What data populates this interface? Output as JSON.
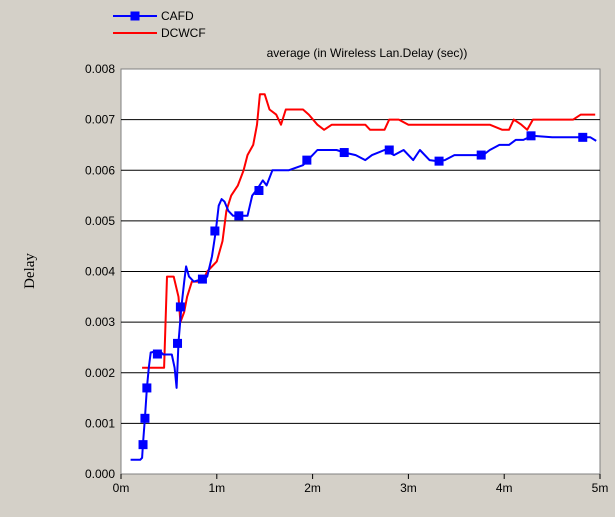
{
  "chart_data": {
    "type": "line",
    "title": "average (in Wireless Lan.Delay (sec))",
    "ylabel": "Delay",
    "xlabel": "",
    "xlim": [
      0,
      5
    ],
    "ylim": [
      0,
      0.008
    ],
    "grid": "horizontal",
    "legend_position": "top-left",
    "x_ticks": [
      {
        "value": 0,
        "label": "0m"
      },
      {
        "value": 1,
        "label": "1m"
      },
      {
        "value": 2,
        "label": "2m"
      },
      {
        "value": 3,
        "label": "3m"
      },
      {
        "value": 4,
        "label": "4m"
      },
      {
        "value": 5,
        "label": "5m"
      }
    ],
    "y_ticks": [
      {
        "value": 0.0,
        "label": "0.000"
      },
      {
        "value": 0.001,
        "label": "0.001"
      },
      {
        "value": 0.002,
        "label": "0.002"
      },
      {
        "value": 0.003,
        "label": "0.003"
      },
      {
        "value": 0.004,
        "label": "0.004"
      },
      {
        "value": 0.005,
        "label": "0.005"
      },
      {
        "value": 0.006,
        "label": "0.006"
      },
      {
        "value": 0.007,
        "label": "0.007"
      },
      {
        "value": 0.008,
        "label": "0.008"
      }
    ],
    "series": [
      {
        "name": "CAFD",
        "color": "#0000ff",
        "marker": "square",
        "points": [
          [
            0.1,
            0.00028
          ],
          [
            0.2,
            0.00028
          ],
          [
            0.22,
            0.00032
          ],
          [
            0.23,
            0.0006
          ],
          [
            0.25,
            0.0011
          ],
          [
            0.27,
            0.0017
          ],
          [
            0.29,
            0.0021
          ],
          [
            0.31,
            0.0024
          ],
          [
            0.36,
            0.00242
          ],
          [
            0.41,
            0.00242
          ],
          [
            0.44,
            0.00236
          ],
          [
            0.53,
            0.00236
          ],
          [
            0.56,
            0.0021
          ],
          [
            0.58,
            0.0017
          ],
          [
            0.6,
            0.0026
          ],
          [
            0.63,
            0.0033
          ],
          [
            0.66,
            0.0038
          ],
          [
            0.68,
            0.0041
          ],
          [
            0.71,
            0.0039
          ],
          [
            0.76,
            0.0038
          ],
          [
            0.85,
            0.00385
          ],
          [
            0.9,
            0.0039
          ],
          [
            0.95,
            0.0043
          ],
          [
            0.99,
            0.0048
          ],
          [
            1.02,
            0.0053
          ],
          [
            1.05,
            0.00543
          ],
          [
            1.08,
            0.00538
          ],
          [
            1.12,
            0.0052
          ],
          [
            1.17,
            0.0051
          ],
          [
            1.32,
            0.0051
          ],
          [
            1.37,
            0.0055
          ],
          [
            1.42,
            0.00562
          ],
          [
            1.48,
            0.0058
          ],
          [
            1.52,
            0.0057
          ],
          [
            1.58,
            0.006
          ],
          [
            1.75,
            0.006
          ],
          [
            1.9,
            0.0061
          ],
          [
            1.95,
            0.0062
          ],
          [
            2.0,
            0.0063
          ],
          [
            2.05,
            0.0064
          ],
          [
            2.25,
            0.0064
          ],
          [
            2.33,
            0.00635
          ],
          [
            2.45,
            0.0063
          ],
          [
            2.55,
            0.0062
          ],
          [
            2.62,
            0.0063
          ],
          [
            2.75,
            0.0064
          ],
          [
            2.85,
            0.0063
          ],
          [
            2.95,
            0.0064
          ],
          [
            3.05,
            0.0062
          ],
          [
            3.12,
            0.0064
          ],
          [
            3.22,
            0.0062
          ],
          [
            3.3,
            0.00618
          ],
          [
            3.38,
            0.0062
          ],
          [
            3.48,
            0.0063
          ],
          [
            3.6,
            0.0063
          ],
          [
            3.72,
            0.0063
          ],
          [
            3.78,
            0.0063
          ],
          [
            3.85,
            0.0064
          ],
          [
            3.95,
            0.0065
          ],
          [
            4.05,
            0.0065
          ],
          [
            4.12,
            0.0066
          ],
          [
            4.2,
            0.0066
          ],
          [
            4.29,
            0.00668
          ],
          [
            4.5,
            0.00665
          ],
          [
            4.82,
            0.00665
          ],
          [
            4.9,
            0.00665
          ],
          [
            4.96,
            0.00658
          ]
        ],
        "marker_points": [
          [
            0.23,
            0.00058
          ],
          [
            0.25,
            0.0011
          ],
          [
            0.27,
            0.0017
          ],
          [
            0.38,
            0.00237
          ],
          [
            0.59,
            0.00258
          ],
          [
            0.62,
            0.0033
          ],
          [
            0.85,
            0.00385
          ],
          [
            0.98,
            0.0048
          ],
          [
            1.23,
            0.0051
          ],
          [
            1.44,
            0.0056
          ],
          [
            1.94,
            0.0062
          ],
          [
            2.33,
            0.00635
          ],
          [
            2.8,
            0.0064
          ],
          [
            3.32,
            0.00618
          ],
          [
            3.76,
            0.0063
          ],
          [
            4.28,
            0.00668
          ],
          [
            4.82,
            0.00665
          ]
        ]
      },
      {
        "name": "DCWCF",
        "color": "#ff0000",
        "marker": "none",
        "points": [
          [
            0.22,
            0.0021
          ],
          [
            0.45,
            0.0021
          ],
          [
            0.48,
            0.0039
          ],
          [
            0.55,
            0.0039
          ],
          [
            0.6,
            0.0035
          ],
          [
            0.62,
            0.003
          ],
          [
            0.66,
            0.0032
          ],
          [
            0.69,
            0.0035
          ],
          [
            0.74,
            0.0038
          ],
          [
            0.85,
            0.0038
          ],
          [
            0.9,
            0.004
          ],
          [
            1.0,
            0.0042
          ],
          [
            1.06,
            0.0046
          ],
          [
            1.1,
            0.0052
          ],
          [
            1.15,
            0.0055
          ],
          [
            1.22,
            0.0057
          ],
          [
            1.28,
            0.006
          ],
          [
            1.32,
            0.0063
          ],
          [
            1.38,
            0.0065
          ],
          [
            1.42,
            0.0069
          ],
          [
            1.45,
            0.0075
          ],
          [
            1.5,
            0.0075
          ],
          [
            1.55,
            0.0072
          ],
          [
            1.62,
            0.0071
          ],
          [
            1.67,
            0.0069
          ],
          [
            1.72,
            0.0072
          ],
          [
            1.9,
            0.0072
          ],
          [
            1.96,
            0.0071
          ],
          [
            2.05,
            0.0069
          ],
          [
            2.12,
            0.0068
          ],
          [
            2.2,
            0.0069
          ],
          [
            2.55,
            0.0069
          ],
          [
            2.6,
            0.0068
          ],
          [
            2.75,
            0.0068
          ],
          [
            2.8,
            0.007
          ],
          [
            2.9,
            0.007
          ],
          [
            3.0,
            0.0069
          ],
          [
            3.35,
            0.0069
          ],
          [
            3.75,
            0.0069
          ],
          [
            3.85,
            0.0069
          ],
          [
            3.98,
            0.0068
          ],
          [
            4.05,
            0.0068
          ],
          [
            4.1,
            0.007
          ],
          [
            4.18,
            0.0069
          ],
          [
            4.24,
            0.0068
          ],
          [
            4.3,
            0.007
          ],
          [
            4.5,
            0.007
          ],
          [
            4.72,
            0.007
          ],
          [
            4.8,
            0.0071
          ],
          [
            4.95,
            0.0071
          ]
        ]
      }
    ]
  }
}
